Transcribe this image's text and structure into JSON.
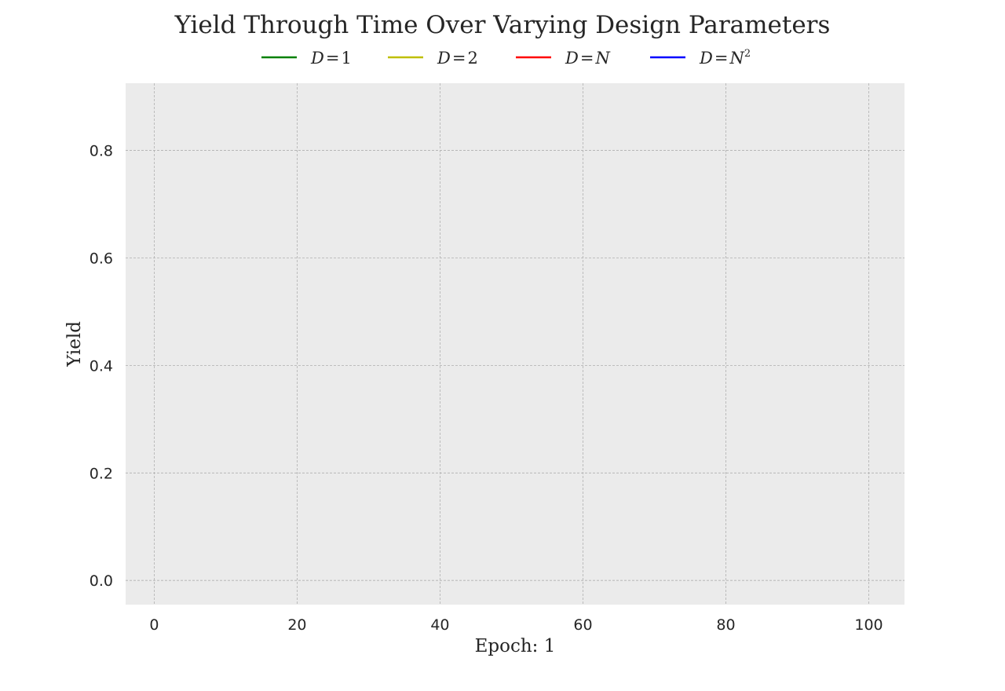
{
  "chart_data": {
    "type": "line",
    "title": "Yield Through Time Over Varying Design Parameters",
    "xlabel": "Epoch: 1",
    "ylabel": "Yield",
    "xlim": [
      -4,
      105
    ],
    "ylim": [
      -0.045,
      0.925
    ],
    "xticks": [
      0,
      20,
      40,
      60,
      80,
      100
    ],
    "xtick_labels": [
      "0",
      "20",
      "40",
      "60",
      "80",
      "100"
    ],
    "yticks": [
      0.0,
      0.2,
      0.4,
      0.6,
      0.8
    ],
    "ytick_labels": [
      "0.0",
      "0.2",
      "0.4",
      "0.6",
      "0.8"
    ],
    "grid": true,
    "legend_position": "top-center",
    "background_color": "#ebebeb",
    "series": [
      {
        "name": "D = 1",
        "base": "D",
        "op": "=",
        "rhs": "1",
        "sup": "",
        "color": "#008000",
        "x": [],
        "y": []
      },
      {
        "name": "D = 2",
        "base": "D",
        "op": "=",
        "rhs": "2",
        "sup": "",
        "color": "#bfbf00",
        "x": [],
        "y": []
      },
      {
        "name": "D = N",
        "base": "D",
        "op": "=",
        "rhs": "N",
        "sup": "",
        "color": "#ff0000",
        "x": [],
        "y": []
      },
      {
        "name": "D = N^2",
        "base": "D",
        "op": "=",
        "rhs": "N",
        "sup": "2",
        "color": "#0000ff",
        "x": [],
        "y": []
      }
    ]
  }
}
